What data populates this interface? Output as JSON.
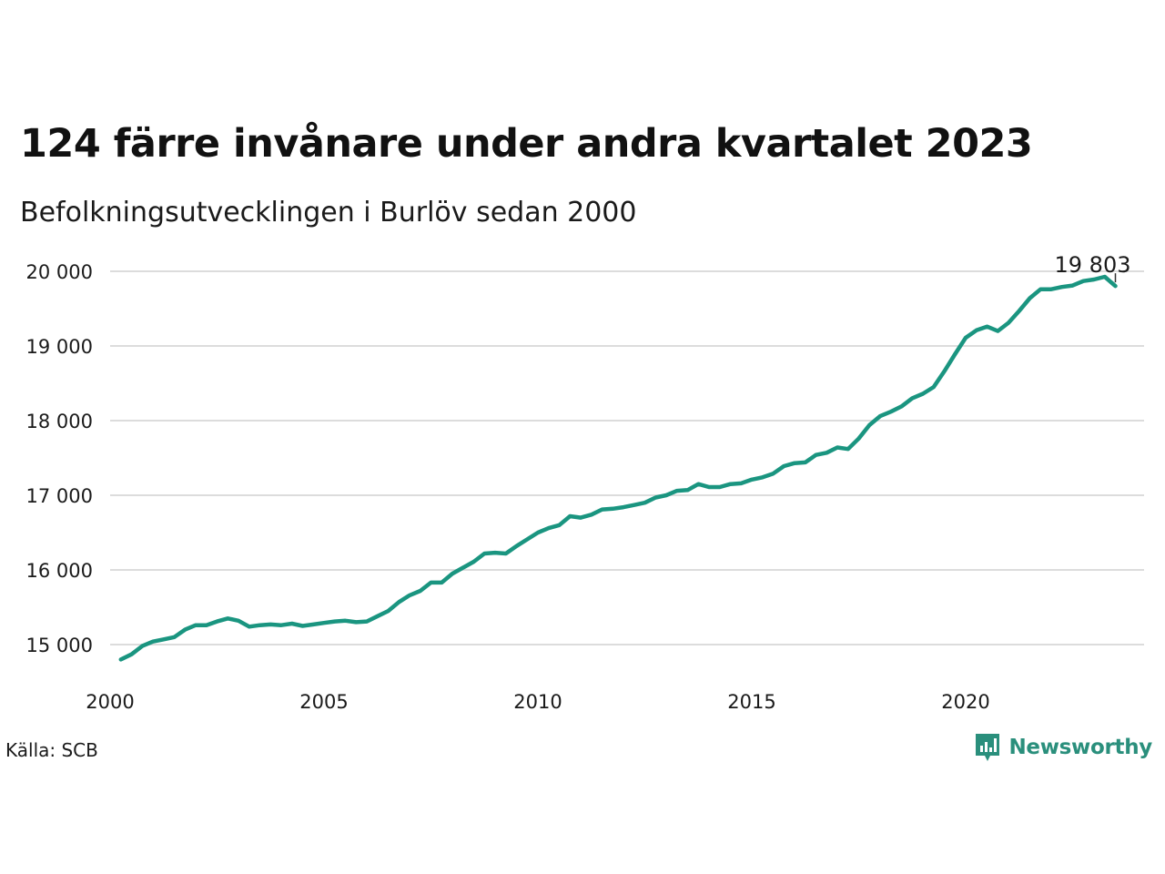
{
  "title": "124 färre invånare under andra kvartalet 2023",
  "subtitle": "Befolkningsutvecklingen i Burlöv sedan 2000",
  "source": "Källa: SCB",
  "brand": {
    "name": "Newsworthy",
    "icon": "newsworthy-logo-icon",
    "color": "#2a8f7c"
  },
  "chart_data": {
    "type": "line",
    "xlim": [
      2000,
      2024
    ],
    "ylim": [
      14500,
      20300
    ],
    "x_ticks": [
      2000,
      2005,
      2010,
      2015,
      2020
    ],
    "x_tick_labels": [
      "2000",
      "2005",
      "2010",
      "2015",
      "2020"
    ],
    "y_ticks": [
      15000,
      16000,
      17000,
      18000,
      19000,
      20000
    ],
    "y_tick_labels": [
      "15 000",
      "16 000",
      "17 000",
      "18 000",
      "19 000",
      "20 000"
    ],
    "grid": "horizontal",
    "line_color": "#1a9580",
    "annotation": {
      "text": "19 803",
      "x": 2023.5,
      "y": 19803
    },
    "series": [
      {
        "x": [
          2000.25,
          2000.5,
          2000.75,
          2001.0,
          2001.25,
          2001.5,
          2001.75,
          2002.0,
          2002.25,
          2002.5,
          2002.75,
          2003.0,
          2003.25,
          2003.5,
          2003.75,
          2004.0,
          2004.25,
          2004.5,
          2004.75,
          2005.0,
          2005.25,
          2005.5,
          2005.75,
          2006.0,
          2006.25,
          2006.5,
          2006.75,
          2007.0,
          2007.25,
          2007.5,
          2007.75,
          2008.0,
          2008.25,
          2008.5,
          2008.75,
          2009.0,
          2009.25,
          2009.5,
          2009.75,
          2010.0,
          2010.25,
          2010.5,
          2010.75,
          2011.0,
          2011.25,
          2011.5,
          2011.75,
          2012.0,
          2012.25,
          2012.5,
          2012.75,
          2013.0,
          2013.25,
          2013.5,
          2013.75,
          2014.0,
          2014.25,
          2014.5,
          2014.75,
          2015.0,
          2015.25,
          2015.5,
          2015.75,
          2016.0,
          2016.25,
          2016.5,
          2016.75,
          2017.0,
          2017.25,
          2017.5,
          2017.75,
          2018.0,
          2018.25,
          2018.5,
          2018.75,
          2019.0,
          2019.25,
          2019.5,
          2019.75,
          2020.0,
          2020.25,
          2020.5,
          2020.75,
          2021.0,
          2021.25,
          2021.5,
          2021.75,
          2022.0,
          2022.25,
          2022.5,
          2022.75,
          2023.0,
          2023.25,
          2023.5
        ],
        "values": [
          14800,
          14870,
          14980,
          15040,
          15070,
          15100,
          15200,
          15260,
          15260,
          15310,
          15350,
          15320,
          15240,
          15260,
          15270,
          15260,
          15280,
          15250,
          15270,
          15290,
          15310,
          15320,
          15300,
          15310,
          15380,
          15450,
          15570,
          15660,
          15720,
          15830,
          15830,
          15950,
          16030,
          16110,
          16220,
          16230,
          16220,
          16320,
          16410,
          16500,
          16560,
          16600,
          16720,
          16700,
          16740,
          16810,
          16820,
          16840,
          16870,
          16900,
          16970,
          17000,
          17060,
          17070,
          17150,
          17110,
          17110,
          17150,
          17160,
          17210,
          17240,
          17290,
          17390,
          17430,
          17440,
          17540,
          17570,
          17640,
          17620,
          17760,
          17940,
          18060,
          18120,
          18190,
          18300,
          18360,
          18450,
          18660,
          18890,
          19110,
          19210,
          19260,
          19200,
          19310,
          19470,
          19640,
          19760,
          19760,
          19790,
          19810,
          19870,
          19890,
          19927,
          19803
        ]
      }
    ]
  }
}
